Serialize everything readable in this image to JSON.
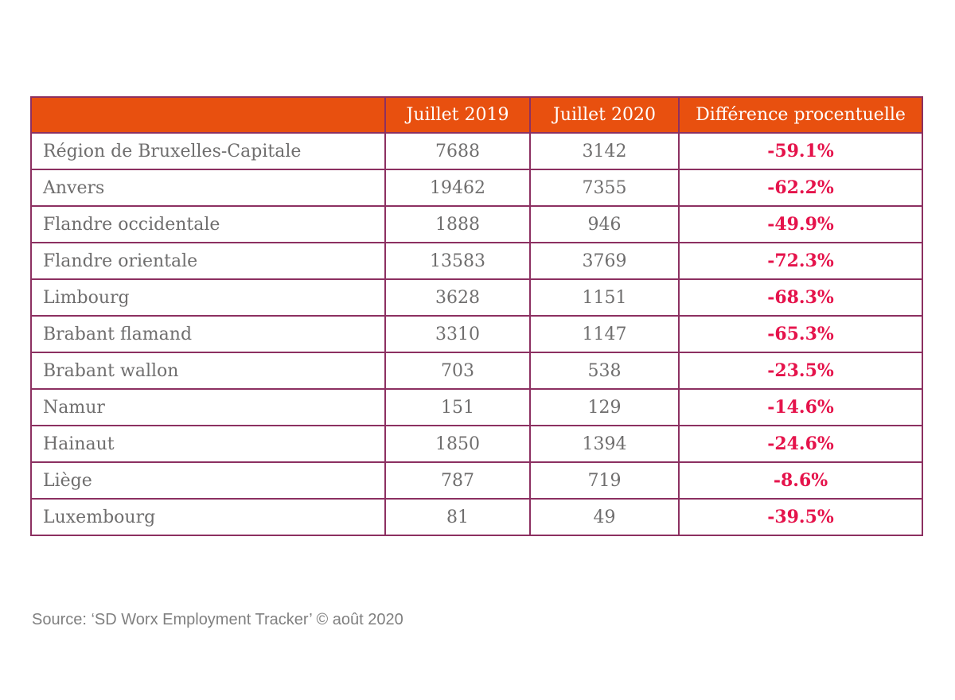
{
  "chart_data": {
    "type": "table",
    "columns": [
      "",
      "Juillet 2019",
      "Juillet 2020",
      "Différence procentuelle"
    ],
    "rows": [
      [
        "Région de Bruxelles-Capitale",
        7688,
        3142,
        "-59.1%"
      ],
      [
        "Anvers",
        19462,
        7355,
        "-62.2%"
      ],
      [
        "Flandre occidentale",
        1888,
        946,
        "-49.9%"
      ],
      [
        "Flandre orientale",
        13583,
        3769,
        "-72.3%"
      ],
      [
        "Limbourg",
        3628,
        1151,
        "-68.3%"
      ],
      [
        "Brabant flamand",
        3310,
        1147,
        "-65.3%"
      ],
      [
        "Brabant wallon",
        703,
        538,
        "-23.5%"
      ],
      [
        "Namur",
        151,
        129,
        "-14.6%"
      ],
      [
        "Hainaut",
        1850,
        1394,
        "-24.6%"
      ],
      [
        "Liège",
        787,
        719,
        "-8.6%"
      ],
      [
        "Luxembourg",
        81,
        49,
        "-39.5%"
      ]
    ]
  },
  "source_note": "Source: ‘SD Worx Employment Tracker’ © août 2020",
  "colors": {
    "header_bg": "#E8500F",
    "header_text": "#FFFFFF",
    "border": "#8C3061",
    "body_text": "#6F6E6E",
    "negative_value": "#E5134B",
    "source_text": "#808080"
  }
}
